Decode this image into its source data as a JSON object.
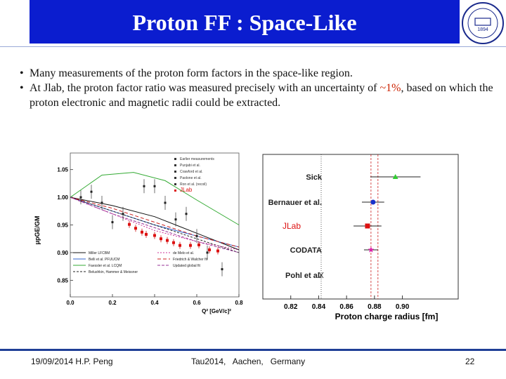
{
  "slide": {
    "title": "Proton FF : Space-Like",
    "logo_text": "1894",
    "bullets": [
      {
        "text": "Many measurements of the proton form factors in the space-like region."
      },
      {
        "text_before": "At Jlab, the proton factor ratio was measured precisely with an uncertainty of ",
        "highlight": "~1%",
        "text_after": ", based on which the proton electronic and magnetic radii could be extracted."
      }
    ],
    "footer": {
      "left": "19/09/2014 H.P. Peng",
      "center": "Tau2014,   Aachen,   Germany",
      "right": "22"
    },
    "colors": {
      "title_bar": "#0b1dcf",
      "highlight": "#cc2200",
      "footer_rule": "#1f3f96"
    }
  },
  "chart_data": [
    {
      "type": "scatter",
      "xlabel": "Q² [GeV/c]²",
      "ylabel": "μpGE/GM",
      "xlim": [
        0.0,
        0.8
      ],
      "ylim": [
        0.82,
        1.08
      ],
      "xticks": [
        "0.0",
        "0.2",
        "0.4",
        "0.6",
        "0.8"
      ],
      "yticks": [
        "1.05",
        "1.00",
        "0.95",
        "0.90",
        "0.85"
      ],
      "legend_top": [
        "Earlier measurements",
        "Punjabi et al.",
        "Crawford et al.",
        "Paolone et al.",
        "Ron et al. (recoil)",
        "JLab"
      ],
      "legend_bottom": [
        "Miller LFCBM",
        "Belli et al. PFUUCM",
        "Faessler et al. LCQM",
        "Belushkin, Hammer & Meissner",
        "de Melo et al.",
        "Friedrich & Walcher fit",
        "Updated global fit"
      ],
      "jlab_points": [
        {
          "x": 0.28,
          "y": 0.951
        },
        {
          "x": 0.31,
          "y": 0.944
        },
        {
          "x": 0.34,
          "y": 0.937
        },
        {
          "x": 0.36,
          "y": 0.933
        },
        {
          "x": 0.4,
          "y": 0.931
        },
        {
          "x": 0.43,
          "y": 0.925
        },
        {
          "x": 0.46,
          "y": 0.922
        },
        {
          "x": 0.49,
          "y": 0.918
        },
        {
          "x": 0.52,
          "y": 0.913
        },
        {
          "x": 0.57,
          "y": 0.913
        },
        {
          "x": 0.61,
          "y": 0.914
        },
        {
          "x": 0.66,
          "y": 0.905
        },
        {
          "x": 0.7,
          "y": 0.903
        }
      ],
      "other_points": [
        {
          "x": 0.05,
          "y": 1.0
        },
        {
          "x": 0.1,
          "y": 1.01
        },
        {
          "x": 0.15,
          "y": 0.99
        },
        {
          "x": 0.2,
          "y": 0.955
        },
        {
          "x": 0.25,
          "y": 0.97
        },
        {
          "x": 0.35,
          "y": 1.02
        },
        {
          "x": 0.4,
          "y": 1.02
        },
        {
          "x": 0.45,
          "y": 0.99
        },
        {
          "x": 0.5,
          "y": 0.96
        },
        {
          "x": 0.55,
          "y": 0.97
        },
        {
          "x": 0.6,
          "y": 0.93
        },
        {
          "x": 0.65,
          "y": 0.9
        },
        {
          "x": 0.72,
          "y": 0.87
        }
      ],
      "curves": [
        {
          "name": "Miller LFCBM",
          "color": "#111111",
          "dash": "",
          "x": [
            0,
            0.2,
            0.4,
            0.6,
            0.8
          ],
          "y": [
            1.0,
            0.985,
            0.965,
            0.935,
            0.905
          ]
        },
        {
          "name": "Belli et al. PFUUCM",
          "color": "#3366cc",
          "dash": "",
          "x": [
            0,
            0.2,
            0.4,
            0.6,
            0.8
          ],
          "y": [
            1.0,
            0.975,
            0.95,
            0.93,
            0.91
          ]
        },
        {
          "name": "Faessler et al. LCQM",
          "color": "#33aa33",
          "dash": "",
          "x": [
            0,
            0.15,
            0.3,
            0.45,
            0.6,
            0.8
          ],
          "y": [
            1.0,
            1.04,
            1.045,
            1.03,
            0.995,
            0.95
          ]
        },
        {
          "name": "Belushkin, Hammer & Meissner",
          "color": "#222222",
          "dash": "3,2",
          "x": [
            0,
            0.2,
            0.4,
            0.6,
            0.8
          ],
          "y": [
            1.0,
            0.975,
            0.95,
            0.925,
            0.9
          ]
        },
        {
          "name": "de Melo et al.",
          "color": "#cc3399",
          "dash": "2,2",
          "x": [
            0,
            0.2,
            0.4,
            0.6,
            0.8
          ],
          "y": [
            1.0,
            0.97,
            0.94,
            0.92,
            0.905
          ]
        },
        {
          "name": "Friedrich & Walcher fit",
          "color": "#cc2222",
          "dash": "5,3",
          "x": [
            0,
            0.2,
            0.4,
            0.6,
            0.8
          ],
          "y": [
            1.0,
            0.98,
            0.955,
            0.93,
            0.91
          ]
        },
        {
          "name": "Updated global fit",
          "color": "#993399",
          "dash": "4,2",
          "x": [
            0,
            0.2,
            0.4,
            0.6,
            0.8
          ],
          "y": [
            1.0,
            0.97,
            0.945,
            0.92,
            0.9
          ]
        }
      ]
    },
    {
      "type": "scatter",
      "xlabel": "Proton charge radius [fm]",
      "xlim": [
        0.8,
        0.94
      ],
      "xticks": [
        0.82,
        0.84,
        0.86,
        0.88,
        0.9
      ],
      "categories": [
        "Sick",
        "Bernauer et al.",
        "JLab",
        "CODATA",
        "Pohl et al."
      ],
      "points": [
        {
          "label": "Sick",
          "value": 0.895,
          "err": 0.018,
          "marker": "triangle",
          "color": "#33cc33"
        },
        {
          "label": "Bernauer et al.",
          "value": 0.879,
          "err": 0.008,
          "marker": "circle",
          "color": "#1a33cc"
        },
        {
          "label": "JLab",
          "value": 0.875,
          "err": 0.01,
          "marker": "square",
          "color": "#dd1111"
        },
        {
          "label": "CODATA",
          "value": 0.8775,
          "err": 0.005,
          "marker": "star",
          "color": "#dd22aa"
        },
        {
          "label": "Pohl et al.",
          "value": 0.8418,
          "err": 0.0007,
          "marker": "cross",
          "color": "#333333"
        }
      ],
      "reference_lines": [
        {
          "value": 0.8418,
          "color": "#333333",
          "style": "dotted"
        },
        {
          "value": 0.8775,
          "color": "#cc2222",
          "style": "dashed"
        },
        {
          "value": 0.8825,
          "color": "#cc2222",
          "style": "dashed"
        }
      ]
    }
  ]
}
